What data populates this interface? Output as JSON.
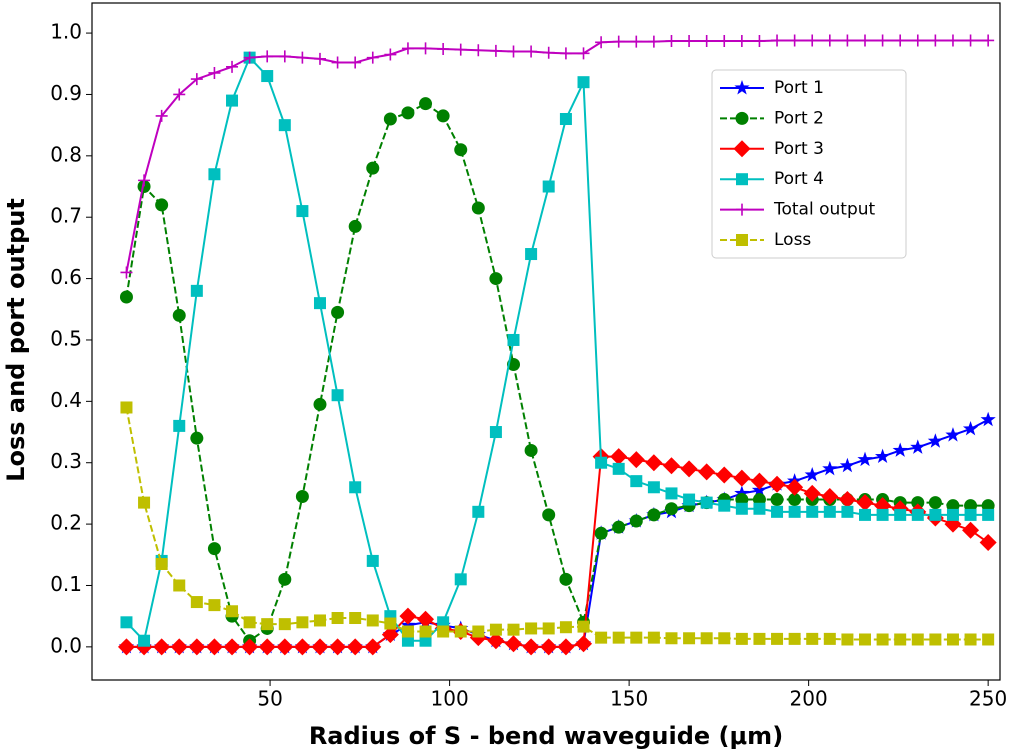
{
  "chart_data": {
    "type": "line",
    "xlabel": "Radius of S - bend waveguide (μm)",
    "ylabel": "Loss and port output",
    "x": [
      10,
      14.9,
      19.8,
      24.7,
      29.6,
      34.5,
      39.4,
      44.3,
      49.2,
      54.1,
      59.0,
      63.9,
      68.8,
      73.7,
      78.6,
      83.5,
      88.4,
      93.3,
      98.2,
      103.1,
      108.0,
      112.9,
      117.8,
      122.7,
      127.6,
      132.4,
      137.3,
      142.2,
      147.1,
      152.0,
      156.9,
      161.8,
      166.7,
      171.6,
      176.5,
      181.4,
      186.3,
      191.2,
      196.1,
      201.0,
      205.9,
      210.8,
      215.7,
      220.6,
      225.5,
      230.4,
      235.3,
      240.2,
      245.1,
      250
    ],
    "series": [
      {
        "name": "Port 1",
        "color": "#0000ff",
        "marker": "star",
        "linestyle": "solid",
        "values": [
          0,
          0,
          0,
          0,
          0,
          0,
          0,
          0,
          0,
          0,
          0,
          0,
          0,
          0,
          0,
          0.02,
          0.035,
          0.04,
          0.035,
          0.03,
          0.02,
          0.01,
          0.005,
          0,
          0,
          0,
          0.005,
          0.185,
          0.195,
          0.205,
          0.215,
          0.22,
          0.23,
          0.235,
          0.24,
          0.25,
          0.255,
          0.265,
          0.27,
          0.28,
          0.29,
          0.295,
          0.305,
          0.31,
          0.32,
          0.325,
          0.335,
          0.345,
          0.355,
          0.37
        ]
      },
      {
        "name": "Port 2",
        "color": "#008000",
        "marker": "circle",
        "linestyle": "dashed",
        "values": [
          0.57,
          0.75,
          0.72,
          0.54,
          0.34,
          0.16,
          0.05,
          0.01,
          0.03,
          0.11,
          0.245,
          0.395,
          0.545,
          0.685,
          0.78,
          0.86,
          0.87,
          0.885,
          0.865,
          0.81,
          0.715,
          0.6,
          0.46,
          0.32,
          0.215,
          0.11,
          0.04,
          0.185,
          0.195,
          0.205,
          0.215,
          0.225,
          0.23,
          0.235,
          0.24,
          0.24,
          0.24,
          0.24,
          0.24,
          0.24,
          0.24,
          0.24,
          0.24,
          0.24,
          0.235,
          0.235,
          0.235,
          0.23,
          0.23,
          0.23
        ]
      },
      {
        "name": "Port 3",
        "color": "#ff0000",
        "marker": "diamond",
        "linestyle": "solid",
        "values": [
          0,
          0,
          0,
          0,
          0,
          0,
          0,
          0,
          0,
          0,
          0,
          0,
          0,
          0,
          0,
          0.02,
          0.05,
          0.045,
          0.03,
          0.025,
          0.015,
          0.01,
          0.005,
          0,
          0,
          0,
          0.005,
          0.31,
          0.31,
          0.305,
          0.3,
          0.295,
          0.29,
          0.285,
          0.28,
          0.275,
          0.27,
          0.265,
          0.26,
          0.25,
          0.245,
          0.24,
          0.235,
          0.23,
          0.225,
          0.22,
          0.21,
          0.2,
          0.19,
          0.17
        ]
      },
      {
        "name": "Port 4",
        "color": "#00bfbf",
        "marker": "square",
        "linestyle": "solid",
        "values": [
          0.04,
          0.01,
          0.14,
          0.36,
          0.58,
          0.77,
          0.89,
          0.96,
          0.93,
          0.85,
          0.71,
          0.56,
          0.41,
          0.26,
          0.14,
          0.05,
          0.01,
          0.01,
          0.04,
          0.11,
          0.22,
          0.35,
          0.5,
          0.64,
          0.75,
          0.86,
          0.92,
          0.3,
          0.29,
          0.27,
          0.26,
          0.25,
          0.24,
          0.235,
          0.23,
          0.225,
          0.225,
          0.22,
          0.22,
          0.22,
          0.22,
          0.22,
          0.215,
          0.215,
          0.215,
          0.215,
          0.215,
          0.215,
          0.215,
          0.215
        ]
      },
      {
        "name": "Total output",
        "color": "#bf00bf",
        "marker": "plus",
        "linestyle": "solid",
        "values": [
          0.61,
          0.76,
          0.865,
          0.9,
          0.925,
          0.935,
          0.945,
          0.96,
          0.962,
          0.962,
          0.96,
          0.958,
          0.952,
          0.952,
          0.96,
          0.965,
          0.975,
          0.975,
          0.974,
          0.973,
          0.972,
          0.971,
          0.97,
          0.97,
          0.968,
          0.967,
          0.967,
          0.985,
          0.986,
          0.986,
          0.986,
          0.987,
          0.987,
          0.987,
          0.987,
          0.987,
          0.987,
          0.988,
          0.988,
          0.988,
          0.988,
          0.988,
          0.988,
          0.988,
          0.988,
          0.988,
          0.988,
          0.988,
          0.988,
          0.988
        ]
      },
      {
        "name": "Loss",
        "color": "#bfbf00",
        "marker": "square",
        "linestyle": "dashed",
        "values": [
          0.39,
          0.235,
          0.135,
          0.1,
          0.073,
          0.068,
          0.058,
          0.04,
          0.037,
          0.037,
          0.04,
          0.043,
          0.047,
          0.047,
          0.043,
          0.038,
          0.025,
          0.025,
          0.025,
          0.025,
          0.025,
          0.028,
          0.028,
          0.03,
          0.03,
          0.032,
          0.033,
          0.015,
          0.015,
          0.015,
          0.015,
          0.014,
          0.014,
          0.014,
          0.014,
          0.013,
          0.013,
          0.013,
          0.013,
          0.013,
          0.013,
          0.012,
          0.012,
          0.012,
          0.012,
          0.012,
          0.012,
          0.012,
          0.012,
          0.012
        ]
      }
    ],
    "xlim": [
      0.4,
      253.3
    ],
    "ylim": [
      -0.054,
      1.049
    ],
    "xticks": [
      50,
      100,
      150,
      200,
      250
    ],
    "yticks": [
      {
        "value": 0,
        "label": "0.0"
      },
      0.1,
      0.2,
      0.3,
      0.4,
      0.5,
      0.6,
      0.7,
      0.8,
      0.9,
      {
        "value": 1,
        "label": "1.0"
      }
    ],
    "grid": false,
    "legend": "upper right"
  }
}
